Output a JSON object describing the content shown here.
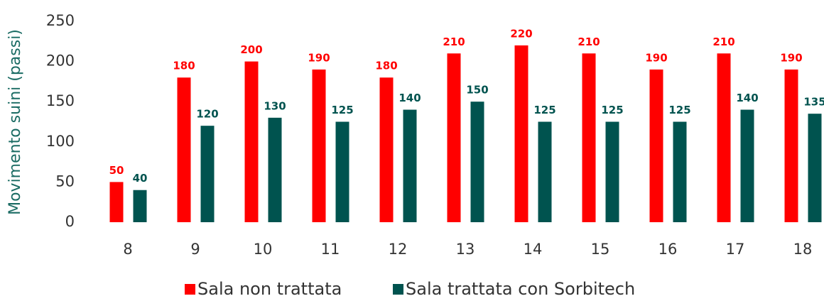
{
  "chart_data": {
    "type": "bar",
    "y_label": "Movimento suini (passi)",
    "categories": [
      "8",
      "9",
      "10",
      "11",
      "12",
      "13",
      "14",
      "15",
      "16",
      "17",
      "18"
    ],
    "series": [
      {
        "name": "Sala non trattata",
        "color": "#ff0000",
        "values": [
          50,
          180,
          200,
          190,
          180,
          210,
          220,
          210,
          190,
          210,
          190
        ]
      },
      {
        "name": "Sala trattata con Sorbitech",
        "color": "#00534f",
        "values": [
          40,
          120,
          130,
          125,
          140,
          150,
          125,
          125,
          125,
          140,
          135
        ]
      }
    ],
    "ylim": [
      0,
      250
    ],
    "yticks": [
      0,
      50,
      100,
      150,
      200,
      250
    ],
    "grid": false,
    "legend": "bottom"
  }
}
